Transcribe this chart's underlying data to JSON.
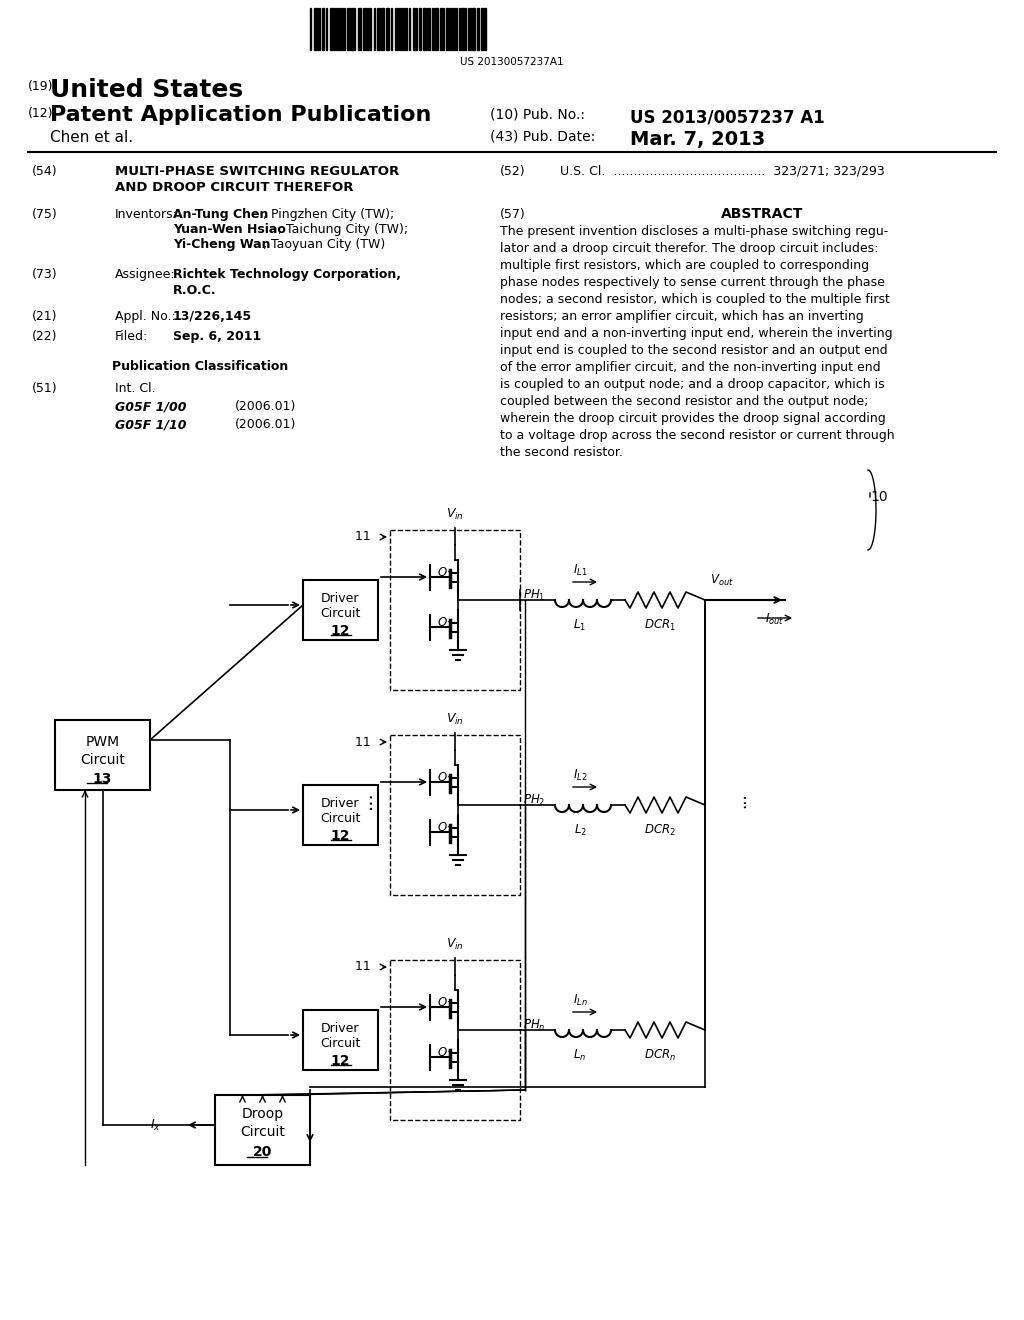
{
  "bg_color": "#ffffff",
  "barcode_text": "US 20130057237A1",
  "title_19": "(19)",
  "title_us": "United States",
  "title_12": "(12)",
  "title_pat": "Patent Application Publication",
  "title_10": "(10) Pub. No.:",
  "pub_no": "US 2013/0057237 A1",
  "title_chen": "Chen et al.",
  "title_43": "(43) Pub. Date:",
  "pub_date": "Mar. 7, 2013",
  "sec54_num": "(54)",
  "sec54_title": "MULTI-PHASE SWITCHING REGULATOR\nAND DROOP CIRCUIT THEREFOR",
  "sec52_num": "(52)",
  "sec52_text": "U.S. Cl.  ....................................  323/271; 323/293",
  "sec75_num": "(75)",
  "sec75_label": "Inventors:",
  "sec75_text": "An-Tung Chen, Pingzhen City (TW);\nYuan-Wen Hsiao, Taichung City (TW);\nYi-Cheng Wan, Taoyuan City (TW)",
  "sec57_num": "(57)",
  "sec57_title": "ABSTRACT",
  "abstract_text": "The present invention discloses a multi-phase switching regu-\nlator and a droop circuit therefor. The droop circuit includes:\nmultiple first resistors, which are coupled to corresponding\nphase nodes respectively to sense current through the phase\nnodes; a second resistor, which is coupled to the multiple first\nresistors; an error amplifier circuit, which has an inverting\ninput end and a non-inverting input end, wherein the inverting\ninput end is coupled to the second resistor and an output end\nof the error amplifier circuit, and the non-inverting input end\nis coupled to an output node; and a droop capacitor, which is\ncoupled between the second resistor and the output node;\nwherein the droop circuit provides the droop signal according\nto a voltage drop across the second resistor or current through\nthe second resistor.",
  "sec73_num": "(73)",
  "sec73_label": "Assignee:",
  "sec73_text": "Richtek Technology Corporation,\nR.O.C.",
  "sec21_num": "(21)",
  "sec21_text": "Appl. No.:  13/226,145",
  "sec22_num": "(22)",
  "sec22_label": "Filed:",
  "sec22_text": "Sep. 6, 2011",
  "pub_class_title": "Publication Classification",
  "sec51_num": "(51)",
  "sec51_label": "Int. Cl.",
  "sec51_g1": "G05F 1/00",
  "sec51_g1_date": "(2006.01)",
  "sec51_g2": "G05F 1/10",
  "sec51_g2_date": "(2006.01)"
}
